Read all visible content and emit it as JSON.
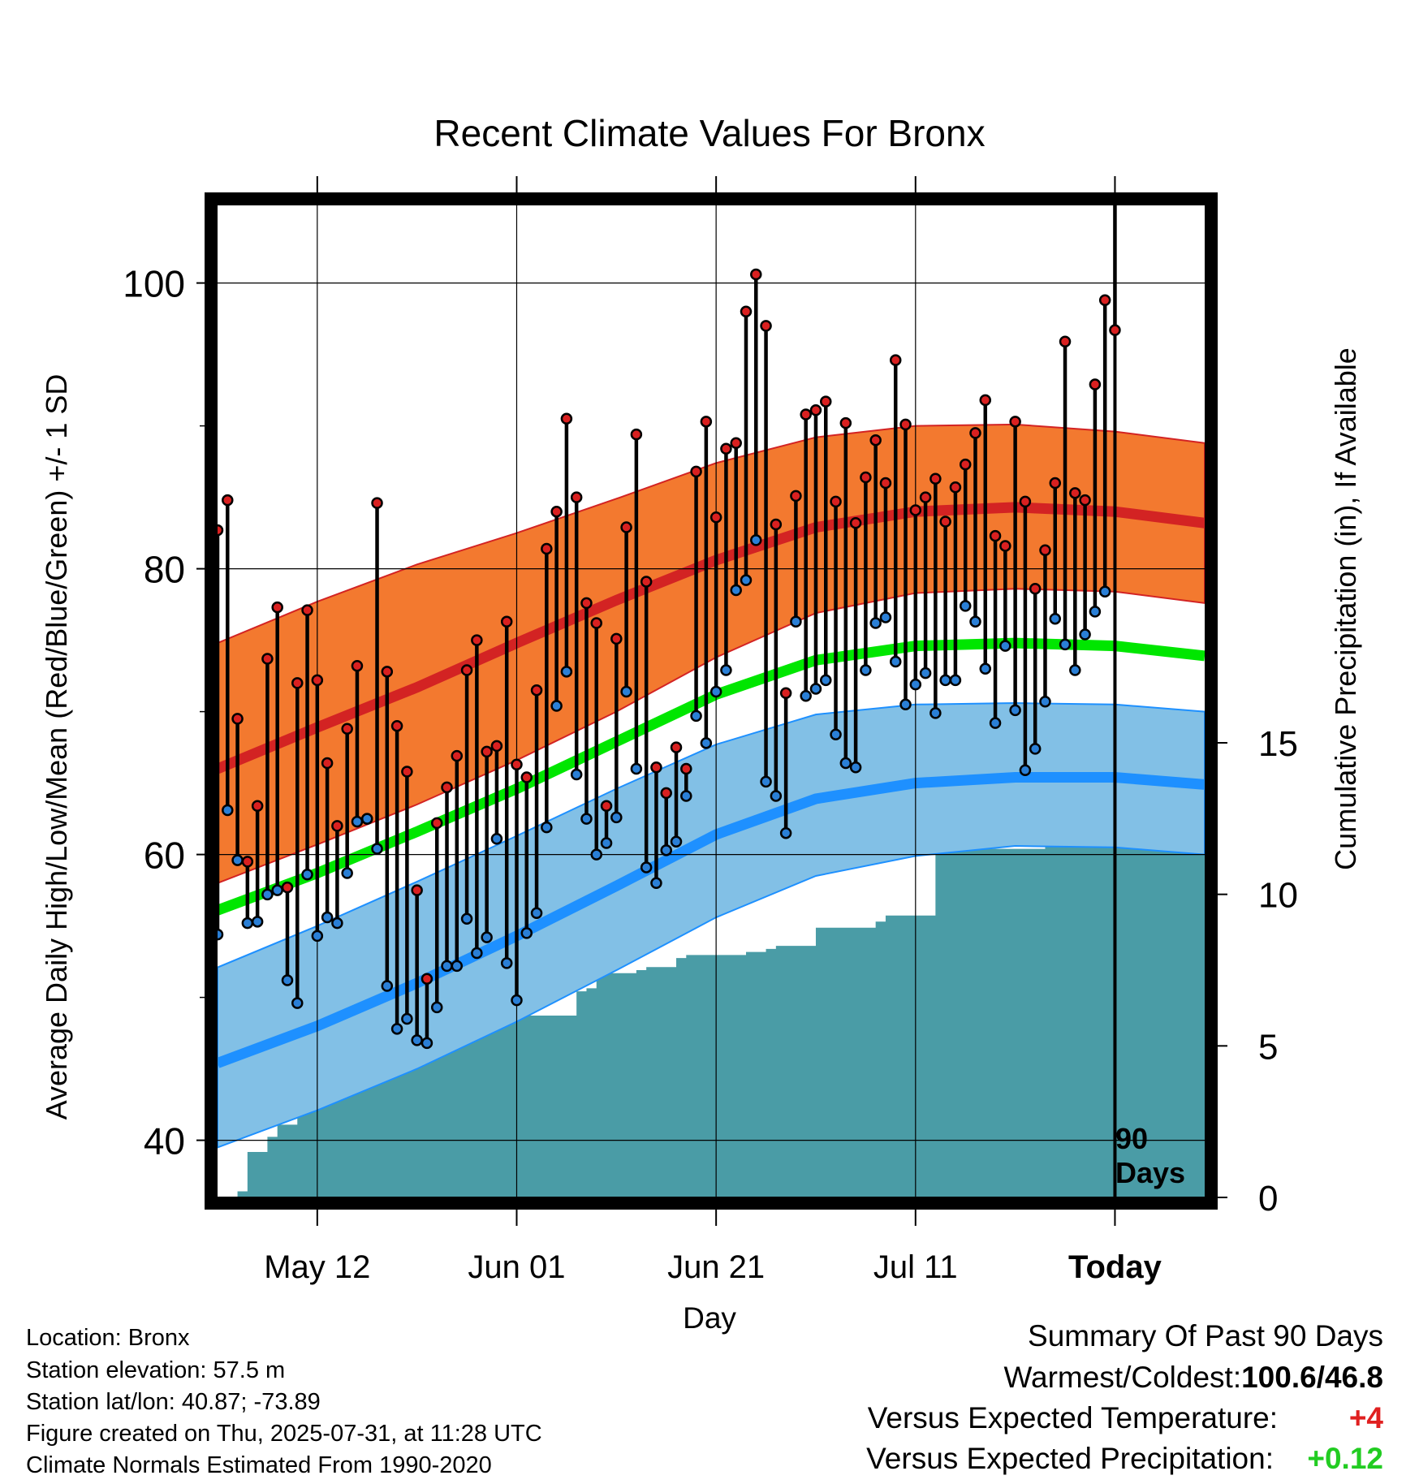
{
  "chart_data": {
    "type": "line",
    "title": "Recent Climate Values For Bronx",
    "xlabel": "Day",
    "ylabel": "Average Daily High/Low/Mean (Red/Blue/Green) +/- 1 SD",
    "y2label": "Cumulative Precipitation (in), If Available",
    "x_start": "2025-05-02",
    "x_end": "2025-08-09",
    "today": "2025-07-31",
    "today_label": "Today",
    "days_label": [
      "90",
      "Days"
    ],
    "x_ticks": [
      {
        "date": "2025-05-12",
        "label": "May 12"
      },
      {
        "date": "2025-06-01",
        "label": "Jun 01"
      },
      {
        "date": "2025-06-21",
        "label": "Jun 21"
      },
      {
        "date": "2025-07-11",
        "label": "Jul 11"
      },
      {
        "date": "2025-07-31",
        "label": "Today"
      }
    ],
    "ylim": [
      36,
      106
    ],
    "y_ticks": [
      40,
      60,
      80,
      100
    ],
    "y_minor_ticks": [
      50,
      70,
      90
    ],
    "y2lim": [
      0,
      33
    ],
    "y2_ticks": [
      0,
      5,
      10,
      15
    ],
    "grid": true,
    "colors": {
      "high": "#d32323",
      "high_band": "#f3792f",
      "low": "#1e90ff",
      "low_band": "#82c0e6",
      "mean": "#00e600",
      "precip": "#4a9ca6",
      "high_dot": "#d92020",
      "low_dot": "#2a7fd6"
    },
    "normals": {
      "dates": [
        "2025-05-02",
        "2025-05-12",
        "2025-05-22",
        "2025-06-01",
        "2025-06-11",
        "2025-06-21",
        "2025-07-01",
        "2025-07-11",
        "2025-07-21",
        "2025-07-31",
        "2025-08-09"
      ],
      "high_mean": [
        66.0,
        68.9,
        71.7,
        74.8,
        77.8,
        80.6,
        82.9,
        84.0,
        84.3,
        84.0,
        83.2
      ],
      "high_upper": [
        74.8,
        77.7,
        80.3,
        82.5,
        84.9,
        87.4,
        89.2,
        90.0,
        90.1,
        89.6,
        88.8
      ],
      "high_lower": [
        58.0,
        60.7,
        63.5,
        66.6,
        70.0,
        73.8,
        76.9,
        78.3,
        78.6,
        78.4,
        77.6
      ],
      "mean": [
        56.1,
        58.7,
        61.6,
        64.6,
        67.9,
        71.2,
        73.6,
        74.6,
        74.8,
        74.6,
        73.9
      ],
      "low_mean": [
        45.4,
        48.0,
        51.0,
        54.3,
        57.8,
        61.4,
        63.9,
        65.0,
        65.4,
        65.4,
        64.9
      ],
      "low_upper": [
        52.1,
        55.0,
        58.1,
        61.3,
        64.6,
        67.7,
        69.8,
        70.5,
        70.6,
        70.5,
        70.0
      ],
      "low_lower": [
        39.5,
        42.1,
        45.0,
        48.3,
        51.9,
        55.6,
        58.5,
        59.9,
        60.6,
        60.5,
        60.0
      ]
    },
    "series": [
      {
        "name": "High",
        "values": [
          82.7,
          84.8,
          69.5,
          59.5,
          63.4,
          73.7,
          77.3,
          57.7,
          72.0,
          77.1,
          72.2,
          66.4,
          62.0,
          68.8,
          73.2,
          62.5,
          84.6,
          72.8,
          69.0,
          65.8,
          57.5,
          51.3,
          62.2,
          64.7,
          66.9,
          72.9,
          75.0,
          67.2,
          67.6,
          76.3,
          66.3,
          65.4,
          71.5,
          81.4,
          84.0,
          90.5,
          85.0,
          77.6,
          76.2,
          63.4,
          75.1,
          82.9,
          89.4,
          79.1,
          66.1,
          64.3,
          67.5,
          66.0,
          86.8,
          90.3,
          83.6,
          88.4,
          88.8,
          98.0,
          100.6,
          97.0,
          83.1,
          71.3,
          85.1,
          90.8,
          91.1,
          91.7,
          84.7,
          90.2,
          83.2,
          86.4,
          89.0,
          86.0,
          94.6,
          90.1,
          84.1,
          85.0,
          86.3,
          83.3,
          85.7,
          87.3,
          89.5,
          91.8,
          82.3,
          81.6,
          90.3,
          84.7,
          78.6,
          81.3,
          86.0,
          95.9,
          85.3,
          84.8,
          92.9,
          98.8,
          96.7
        ]
      },
      {
        "name": "Low",
        "values": [
          54.4,
          63.1,
          59.6,
          55.2,
          55.3,
          57.2,
          57.5,
          51.2,
          49.6,
          58.6,
          54.3,
          55.6,
          55.2,
          58.7,
          62.3,
          62.5,
          60.4,
          50.8,
          47.8,
          48.5,
          47.0,
          46.8,
          49.3,
          52.2,
          52.2,
          55.5,
          53.1,
          54.2,
          61.1,
          52.4,
          49.8,
          54.5,
          55.9,
          61.9,
          70.4,
          72.8,
          65.6,
          62.5,
          60.0,
          60.8,
          62.6,
          71.4,
          66.0,
          59.1,
          58.0,
          60.3,
          60.9,
          64.1,
          69.7,
          67.8,
          71.4,
          72.9,
          78.5,
          79.2,
          82.0,
          65.1,
          64.1,
          61.5,
          76.3,
          71.1,
          71.6,
          72.2,
          68.4,
          66.4,
          66.1,
          72.9,
          76.2,
          76.6,
          73.5,
          70.5,
          71.9,
          72.7,
          69.9,
          72.2,
          72.2,
          77.4,
          76.3,
          73.0,
          69.2,
          74.6,
          70.1,
          65.9,
          67.4,
          70.7,
          76.5,
          74.7,
          72.9,
          75.4,
          77.0,
          78.4
        ]
      }
    ],
    "precip_cumulative": {
      "dates": [
        "2025-05-02",
        "2025-05-04",
        "2025-05-05",
        "2025-05-07",
        "2025-05-08",
        "2025-05-10",
        "2025-05-11",
        "2025-05-13",
        "2025-05-14",
        "2025-05-20",
        "2025-05-21",
        "2025-05-22",
        "2025-05-27",
        "2025-05-28",
        "2025-05-30",
        "2025-05-31",
        "2025-06-06",
        "2025-06-07",
        "2025-06-08",
        "2025-06-09",
        "2025-06-10",
        "2025-06-13",
        "2025-06-14",
        "2025-06-17",
        "2025-06-18",
        "2025-06-23",
        "2025-06-24",
        "2025-06-25",
        "2025-06-26",
        "2025-06-27",
        "2025-06-30",
        "2025-07-01",
        "2025-07-02",
        "2025-07-06",
        "2025-07-07",
        "2025-07-08",
        "2025-07-12",
        "2025-07-13",
        "2025-07-23",
        "2025-07-24",
        "2025-08-09"
      ],
      "values": [
        0.0,
        0.2,
        1.5,
        2.0,
        2.4,
        3.0,
        3.0,
        3.4,
        4.0,
        4.1,
        4.9,
        5.2,
        5.2,
        5.5,
        5.7,
        6.0,
        6.0,
        6.8,
        6.9,
        7.4,
        7.4,
        7.5,
        7.6,
        7.9,
        8.0,
        8.0,
        8.1,
        8.1,
        8.2,
        8.3,
        8.3,
        8.9,
        8.9,
        8.9,
        9.1,
        9.3,
        9.3,
        11.5,
        11.5,
        11.6,
        11.6
      ]
    },
    "summary": {
      "title": "Summary Of Past 90 Days",
      "extremes_label": "Warmest/Coldest:",
      "extremes_value": "100.6/46.8",
      "temp_label": "Versus Expected Temperature:",
      "temp_value": "+4",
      "temp_color": "#e02020",
      "precip_label": "Versus Expected Precipitation:",
      "precip_value": "+0.12",
      "precip_color": "#22cc22"
    }
  },
  "info": {
    "location": "Location: Bronx",
    "elevation": "Station elevation: 57.5 m",
    "latlon": "Station lat/lon: 40.87; -73.89",
    "created": "Figure created on Thu, 2025-07-31, at 11:28 UTC",
    "normals": "Climate Normals Estimated From 1990-2020"
  }
}
